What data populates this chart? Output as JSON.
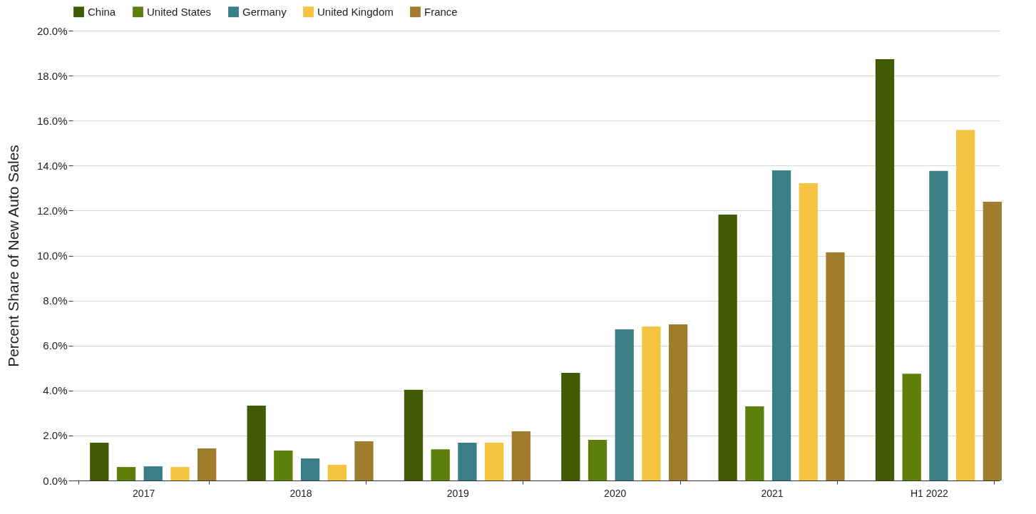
{
  "chart_data": {
    "type": "bar",
    "ylabel": "Percent Share of New Auto Sales",
    "categories": [
      "2017",
      "2018",
      "2019",
      "2020",
      "2021",
      "H1 2022"
    ],
    "series": [
      {
        "name": "China",
        "color": "#435a05",
        "values": [
          1.68,
          3.33,
          4.03,
          4.79,
          11.82,
          18.73
        ]
      },
      {
        "name": "United States",
        "color": "#5e7f0b",
        "values": [
          0.6,
          1.33,
          1.39,
          1.81,
          3.3,
          4.75
        ]
      },
      {
        "name": "Germany",
        "color": "#3a7f87",
        "values": [
          0.63,
          0.98,
          1.68,
          6.72,
          13.79,
          13.76
        ]
      },
      {
        "name": "United Kingdom",
        "color": "#f4c340",
        "values": [
          0.6,
          0.7,
          1.68,
          6.85,
          13.22,
          15.59
        ]
      },
      {
        "name": "France",
        "color": "#a07d2c",
        "values": [
          1.43,
          1.74,
          2.19,
          6.94,
          10.14,
          12.39
        ]
      }
    ],
    "ylim": [
      0,
      20
    ],
    "yticks": [
      {
        "value": 0,
        "label": "0.0%"
      },
      {
        "value": 2,
        "label": "2.0%"
      },
      {
        "value": 4,
        "label": "4.0%"
      },
      {
        "value": 6,
        "label": "6.0%"
      },
      {
        "value": 8,
        "label": "8.0%"
      },
      {
        "value": 10,
        "label": "10.0%"
      },
      {
        "value": 12,
        "label": "12.0%"
      },
      {
        "value": 14,
        "label": "14.0%"
      },
      {
        "value": 16,
        "label": "16.0%"
      },
      {
        "value": 18,
        "label": "18.0%"
      },
      {
        "value": 20,
        "label": "20.0%"
      }
    ],
    "grid": "y",
    "legend": "top"
  }
}
